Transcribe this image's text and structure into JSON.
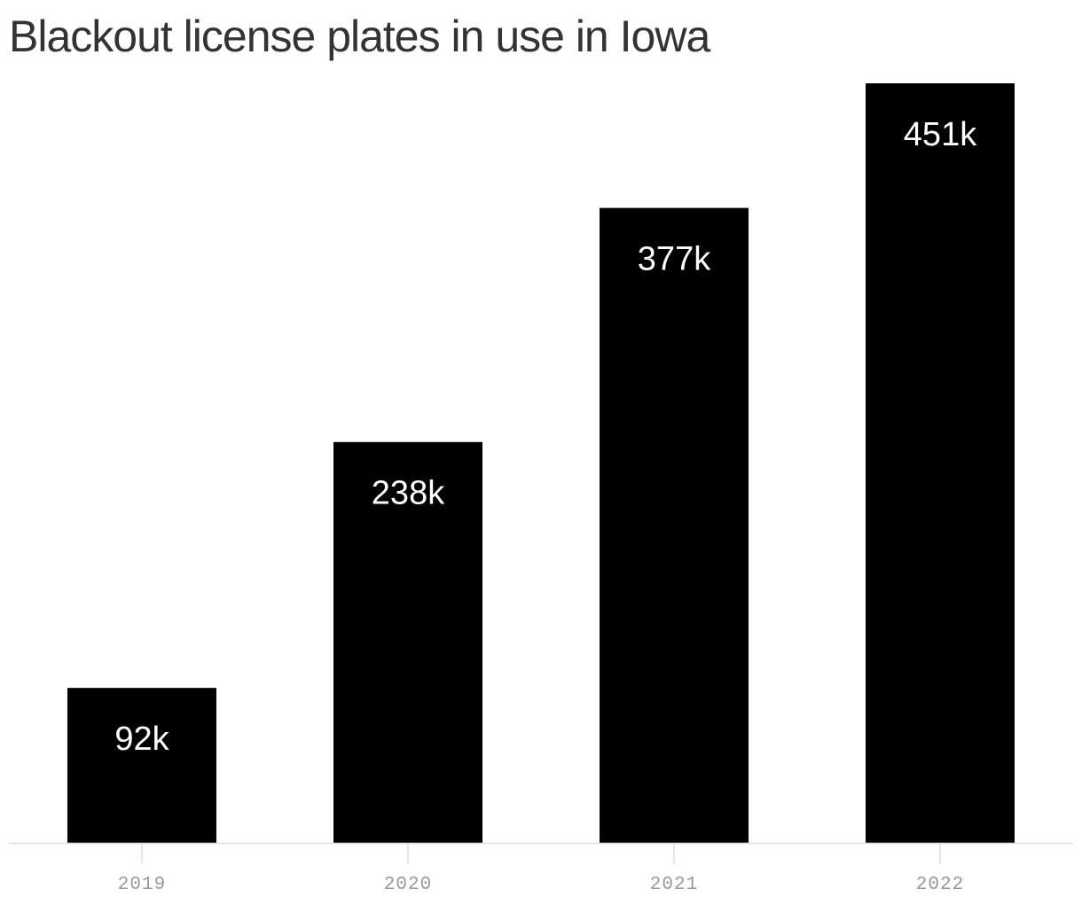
{
  "chart_data": {
    "type": "bar",
    "title": "Blackout license plates in use in Iowa",
    "categories": [
      "2019",
      "2020",
      "2021",
      "2022"
    ],
    "values": [
      92,
      238,
      377,
      451
    ],
    "value_labels": [
      "92k",
      "238k",
      "377k",
      "451k"
    ],
    "unit": "thousand plates",
    "xlabel": "",
    "ylabel": "",
    "ylim": [
      0,
      451
    ],
    "grid": false,
    "legend": "none",
    "colors": {
      "bar": "#000000",
      "bar_label": "#ffffff",
      "title": "#333333",
      "tick_label": "#999999",
      "axis": "#dddddd"
    }
  }
}
